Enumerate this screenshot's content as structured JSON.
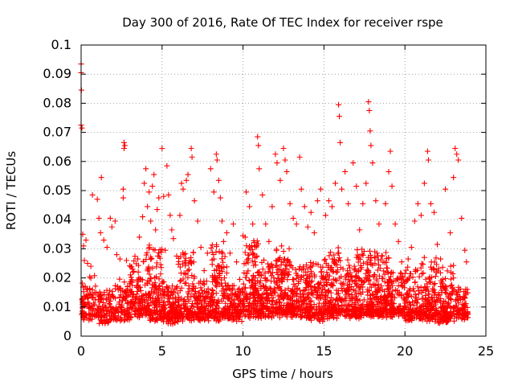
{
  "chart_data": {
    "type": "scatter",
    "title": "Day 300 of 2016, Rate Of TEC Index for receiver rspe",
    "xlabel": "GPS time / hours",
    "ylabel": "ROTI / TECUs",
    "xlim": [
      0,
      25
    ],
    "ylim": [
      0,
      0.1
    ],
    "x_ticks": [
      0,
      5,
      10,
      15,
      20,
      25
    ],
    "x_tick_labels": [
      "0",
      "5",
      "10",
      "15",
      "20",
      "25"
    ],
    "y_ticks": [
      0,
      0.01,
      0.02,
      0.03,
      0.04,
      0.05,
      0.06,
      0.07,
      0.08,
      0.09,
      0.1
    ],
    "y_tick_labels": [
      "0",
      "0.01",
      "0.02",
      "0.03",
      "0.04",
      "0.05",
      "0.06",
      "0.07",
      "0.08",
      "0.09",
      "0.1"
    ],
    "grid": true,
    "marker": "+",
    "color": "#ff0000",
    "series": [
      {
        "name": "ROTI",
        "points": [
          [
            0.0,
            0.0935
          ],
          [
            0.0,
            0.0905
          ],
          [
            0.02,
            0.0845
          ],
          [
            0.0,
            0.0725
          ],
          [
            0.05,
            0.0715
          ],
          [
            0.1,
            0.035
          ],
          [
            0.15,
            0.031
          ],
          [
            0.2,
            0.026
          ],
          [
            0.3,
            0.033
          ],
          [
            0.4,
            0.025
          ],
          [
            0.6,
            0.024
          ],
          [
            0.7,
            0.0485
          ],
          [
            1.0,
            0.047
          ],
          [
            1.1,
            0.0405
          ],
          [
            1.25,
            0.0545
          ],
          [
            1.2,
            0.0355
          ],
          [
            1.4,
            0.033
          ],
          [
            1.6,
            0.0305
          ],
          [
            1.8,
            0.0405
          ],
          [
            1.9,
            0.0375
          ],
          [
            2.1,
            0.0395
          ],
          [
            2.2,
            0.028
          ],
          [
            2.4,
            0.0265
          ],
          [
            2.6,
            0.0505
          ],
          [
            2.6,
            0.0475
          ],
          [
            2.65,
            0.0665
          ],
          [
            2.65,
            0.0645
          ],
          [
            2.7,
            0.0655
          ],
          [
            2.8,
            0.026
          ],
          [
            3.0,
            0.018
          ],
          [
            3.2,
            0.022
          ],
          [
            3.5,
            0.0265
          ],
          [
            3.6,
            0.034
          ],
          [
            3.8,
            0.041
          ],
          [
            3.9,
            0.0525
          ],
          [
            4.0,
            0.0575
          ],
          [
            4.1,
            0.0445
          ],
          [
            4.2,
            0.0495
          ],
          [
            4.3,
            0.0395
          ],
          [
            4.4,
            0.0515
          ],
          [
            4.5,
            0.0555
          ],
          [
            4.6,
            0.0365
          ],
          [
            4.7,
            0.0435
          ],
          [
            4.8,
            0.0475
          ],
          [
            5.0,
            0.0645
          ],
          [
            5.1,
            0.048
          ],
          [
            5.2,
            0.0295
          ],
          [
            5.3,
            0.0585
          ],
          [
            5.4,
            0.0485
          ],
          [
            5.5,
            0.0415
          ],
          [
            5.6,
            0.0365
          ],
          [
            5.7,
            0.0335
          ],
          [
            5.9,
            0.0275
          ],
          [
            6.1,
            0.0415
          ],
          [
            6.2,
            0.0525
          ],
          [
            6.3,
            0.0505
          ],
          [
            6.5,
            0.0535
          ],
          [
            6.6,
            0.0555
          ],
          [
            6.8,
            0.0645
          ],
          [
            6.85,
            0.0615
          ],
          [
            7.0,
            0.0465
          ],
          [
            7.2,
            0.0395
          ],
          [
            7.4,
            0.0305
          ],
          [
            7.6,
            0.0225
          ],
          [
            7.8,
            0.0285
          ],
          [
            8.0,
            0.0575
          ],
          [
            8.2,
            0.0495
          ],
          [
            8.35,
            0.0625
          ],
          [
            8.4,
            0.0605
          ],
          [
            8.5,
            0.0535
          ],
          [
            8.6,
            0.0475
          ],
          [
            8.7,
            0.0395
          ],
          [
            8.8,
            0.0325
          ],
          [
            9.0,
            0.0355
          ],
          [
            9.2,
            0.0285
          ],
          [
            9.4,
            0.0385
          ],
          [
            9.6,
            0.0255
          ],
          [
            9.8,
            0.0195
          ],
          [
            10.0,
            0.0345
          ],
          [
            10.2,
            0.0495
          ],
          [
            10.4,
            0.0445
          ],
          [
            10.6,
            0.0385
          ],
          [
            10.9,
            0.0685
          ],
          [
            10.95,
            0.0655
          ],
          [
            11.0,
            0.0575
          ],
          [
            11.2,
            0.0485
          ],
          [
            11.4,
            0.0385
          ],
          [
            11.6,
            0.0325
          ],
          [
            11.8,
            0.0445
          ],
          [
            12.0,
            0.0625
          ],
          [
            12.1,
            0.0595
          ],
          [
            12.3,
            0.0535
          ],
          [
            12.5,
            0.0645
          ],
          [
            12.6,
            0.0605
          ],
          [
            12.7,
            0.0565
          ],
          [
            12.9,
            0.0455
          ],
          [
            13.1,
            0.0405
          ],
          [
            13.3,
            0.0385
          ],
          [
            13.5,
            0.0615
          ],
          [
            13.6,
            0.0505
          ],
          [
            13.8,
            0.0445
          ],
          [
            14.0,
            0.0375
          ],
          [
            14.2,
            0.0425
          ],
          [
            14.4,
            0.0355
          ],
          [
            14.6,
            0.0465
          ],
          [
            14.8,
            0.0505
          ],
          [
            15.1,
            0.0415
          ],
          [
            15.3,
            0.0465
          ],
          [
            15.5,
            0.0445
          ],
          [
            15.7,
            0.0525
          ],
          [
            15.9,
            0.0795
          ],
          [
            15.95,
            0.0755
          ],
          [
            16.0,
            0.0665
          ],
          [
            16.1,
            0.0505
          ],
          [
            16.3,
            0.0565
          ],
          [
            16.5,
            0.0455
          ],
          [
            16.8,
            0.0595
          ],
          [
            17.0,
            0.0515
          ],
          [
            17.2,
            0.0365
          ],
          [
            17.4,
            0.0455
          ],
          [
            17.6,
            0.0525
          ],
          [
            17.75,
            0.0805
          ],
          [
            17.8,
            0.0775
          ],
          [
            17.85,
            0.0705
          ],
          [
            17.9,
            0.0655
          ],
          [
            18.0,
            0.0595
          ],
          [
            18.2,
            0.0465
          ],
          [
            18.4,
            0.0385
          ],
          [
            18.6,
            0.0275
          ],
          [
            18.8,
            0.0455
          ],
          [
            19.0,
            0.0565
          ],
          [
            19.1,
            0.0635
          ],
          [
            19.2,
            0.0515
          ],
          [
            19.4,
            0.0385
          ],
          [
            19.6,
            0.0325
          ],
          [
            19.8,
            0.0255
          ],
          [
            20.0,
            0.0215
          ],
          [
            20.2,
            0.0265
          ],
          [
            20.4,
            0.0305
          ],
          [
            20.6,
            0.0395
          ],
          [
            20.8,
            0.0455
          ],
          [
            21.0,
            0.0415
          ],
          [
            21.2,
            0.0525
          ],
          [
            21.4,
            0.0635
          ],
          [
            21.45,
            0.0605
          ],
          [
            21.6,
            0.0455
          ],
          [
            21.8,
            0.0425
          ],
          [
            22.0,
            0.0315
          ],
          [
            22.2,
            0.0265
          ],
          [
            22.5,
            0.0505
          ],
          [
            22.8,
            0.0355
          ],
          [
            23.0,
            0.0545
          ],
          [
            23.1,
            0.0645
          ],
          [
            23.2,
            0.0625
          ],
          [
            23.3,
            0.0605
          ],
          [
            23.5,
            0.0405
          ],
          [
            23.7,
            0.0295
          ],
          [
            23.8,
            0.0255
          ]
        ],
        "bands": [
          [
            0.0,
            1.0,
            0.005,
            0.02,
            30
          ],
          [
            1.0,
            2.0,
            0.004,
            0.015,
            30
          ],
          [
            2.0,
            3.0,
            0.005,
            0.018,
            30
          ],
          [
            3.0,
            4.0,
            0.006,
            0.028,
            40
          ],
          [
            4.0,
            5.0,
            0.005,
            0.032,
            50
          ],
          [
            5.0,
            6.0,
            0.004,
            0.018,
            45
          ],
          [
            6.0,
            7.0,
            0.005,
            0.03,
            45
          ],
          [
            7.0,
            8.0,
            0.005,
            0.018,
            40
          ],
          [
            8.0,
            9.0,
            0.005,
            0.032,
            50
          ],
          [
            9.0,
            10.0,
            0.005,
            0.018,
            40
          ],
          [
            10.0,
            11.0,
            0.006,
            0.034,
            50
          ],
          [
            11.0,
            12.0,
            0.006,
            0.026,
            45
          ],
          [
            12.0,
            13.0,
            0.006,
            0.032,
            50
          ],
          [
            13.0,
            14.0,
            0.006,
            0.024,
            45
          ],
          [
            14.0,
            15.0,
            0.005,
            0.026,
            45
          ],
          [
            15.0,
            16.0,
            0.006,
            0.03,
            50
          ],
          [
            16.0,
            17.0,
            0.006,
            0.026,
            45
          ],
          [
            17.0,
            18.0,
            0.006,
            0.03,
            50
          ],
          [
            18.0,
            19.0,
            0.006,
            0.03,
            50
          ],
          [
            19.0,
            20.0,
            0.006,
            0.022,
            40
          ],
          [
            20.0,
            21.0,
            0.005,
            0.024,
            40
          ],
          [
            21.0,
            22.0,
            0.005,
            0.028,
            45
          ],
          [
            22.0,
            23.0,
            0.004,
            0.024,
            45
          ],
          [
            23.0,
            23.9,
            0.005,
            0.016,
            30
          ]
        ]
      }
    ]
  }
}
